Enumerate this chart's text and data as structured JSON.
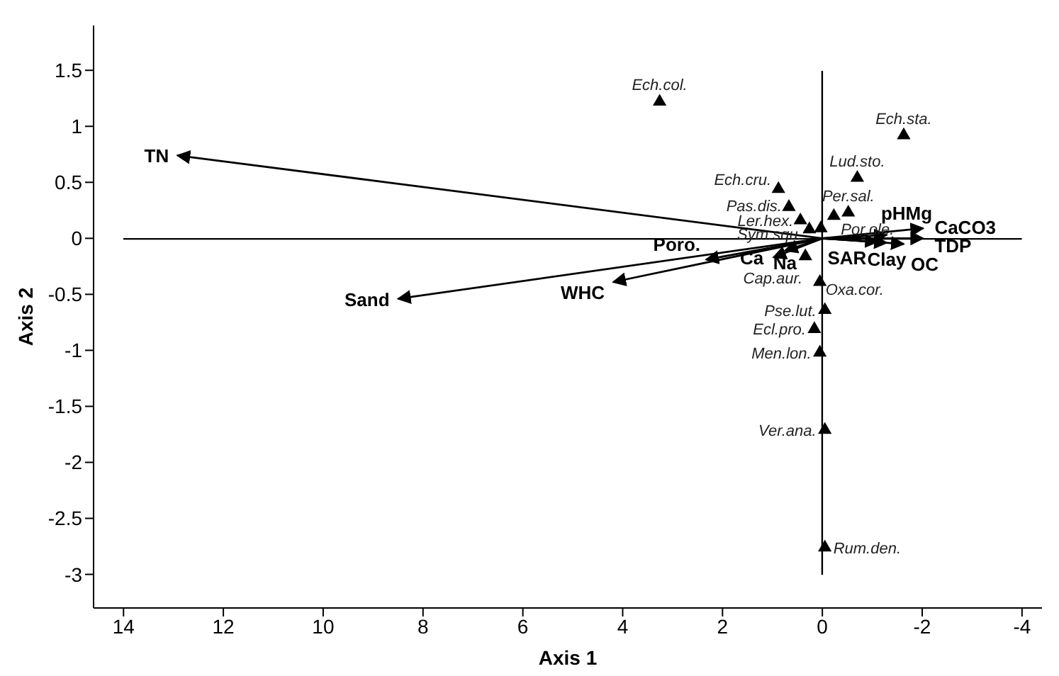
{
  "chart_data": {
    "type": "scatter",
    "xlabel": "Axis 1",
    "ylabel": "Axis 2",
    "xlim": [
      14.6,
      -4.4
    ],
    "ylim": [
      -3.3,
      1.9
    ],
    "xticks": [
      14,
      12,
      10,
      8,
      6,
      4,
      2,
      0,
      -2,
      -4
    ],
    "yticks": [
      1.5,
      1,
      0.5,
      0,
      -0.5,
      -1,
      -1.5,
      -2,
      -2.5,
      -3
    ],
    "marker": "triangle",
    "series": [
      {
        "color": "#000000",
        "x": [
          3.26,
          -1.63,
          -0.7,
          -0.52,
          -0.23,
          0.88,
          0.67,
          0.44,
          0.26,
          0.03,
          0.34,
          0.05,
          -0.05,
          0.16,
          0.05,
          -0.05,
          -0.05
        ],
        "values": [
          1.22,
          0.92,
          0.54,
          0.23,
          0.2,
          0.44,
          0.28,
          0.16,
          0.08,
          0.09,
          -0.16,
          -0.39,
          -0.64,
          -0.81,
          -1.02,
          -1.71,
          -2.76
        ],
        "value_labels": [
          "Ech.col.",
          "Ech.sta.",
          "Lud.sto.",
          "Per.sal.",
          "Por.ole.",
          "Ech.cru.",
          "Pas.dis.",
          "Ler.hex.",
          "Sym.squ.",
          null,
          "Cap.aur.",
          "Oxa.cor.",
          "Pse.lut.",
          "Ecl.pro.",
          "Men.lon.",
          "Ver.ana.",
          "Rum.den."
        ]
      },
      {
        "type": "line",
        "marker": "none",
        "name": "TN",
        "color": "#000000",
        "x": [
          0,
          12.92
        ],
        "values": [
          0,
          0.74
        ]
      },
      {
        "type": "line",
        "marker": "none",
        "name": "Sand",
        "color": "#000000",
        "x": [
          0,
          8.5
        ],
        "values": [
          0,
          -0.54
        ]
      },
      {
        "type": "line",
        "marker": "none",
        "name": "WHC",
        "color": "#000000",
        "x": [
          0,
          4.19
        ],
        "values": [
          0,
          -0.39
        ]
      },
      {
        "type": "line",
        "marker": "none",
        "name": "Poro.",
        "color": "#000000",
        "x": [
          0,
          2.33
        ],
        "values": [
          0,
          -0.19
        ]
      },
      {
        "type": "line",
        "marker": "none",
        "name": "Ca",
        "color": "#000000",
        "x": [
          0,
          0.98
        ],
        "values": [
          0,
          -0.17
        ]
      },
      {
        "type": "line",
        "marker": "none",
        "name": "Na",
        "color": "#000000",
        "x": [
          0,
          0.75
        ],
        "values": [
          0,
          -0.11
        ]
      },
      {
        "type": "line",
        "marker": "none",
        "name": "pHMg",
        "color": "#000000",
        "x": [
          0,
          -1.29
        ],
        "values": [
          0,
          0.03
        ]
      },
      {
        "type": "line",
        "marker": "none",
        "name": "CaCO3",
        "color": "#000000",
        "x": [
          0,
          -2.02
        ],
        "values": [
          0,
          0.09
        ]
      },
      {
        "type": "line",
        "marker": "none",
        "name": "TDP",
        "color": "#000000",
        "x": [
          0,
          -2.02
        ],
        "values": [
          0,
          0
        ]
      },
      {
        "type": "line",
        "marker": "none",
        "name": "SAR",
        "color": "#000000",
        "x": [
          0,
          -1.11
        ],
        "values": [
          0,
          -0.03
        ]
      },
      {
        "type": "line",
        "marker": "none",
        "name": "Clay",
        "color": "#000000",
        "x": [
          0,
          -1.29
        ],
        "values": [
          0,
          -0.04
        ]
      },
      {
        "type": "line",
        "marker": "none",
        "name": "OC",
        "color": "#000000",
        "x": [
          0,
          -1.63
        ],
        "values": [
          0,
          -0.05
        ]
      }
    ]
  }
}
